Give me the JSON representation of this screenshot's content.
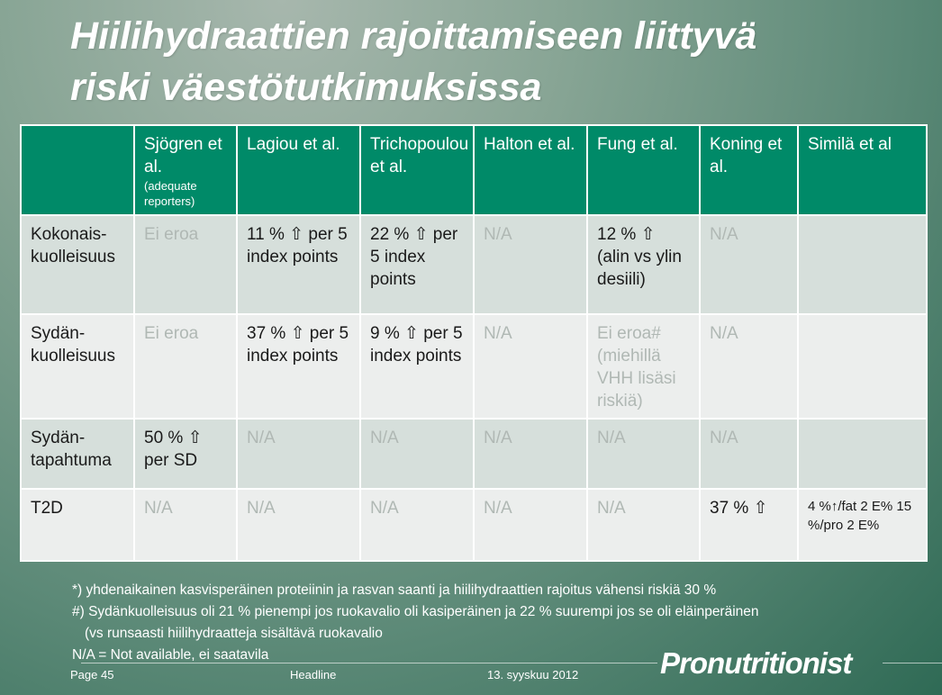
{
  "title": {
    "line1": "Hiilihydraattien rajoittamiseen liittyvä",
    "line2": "riski väestötutkimuksissa"
  },
  "table": {
    "headers": [
      {
        "main": "",
        "sub": ""
      },
      {
        "main": "Sjögren et al.",
        "sub": "(adequate reporters)"
      },
      {
        "main": "Lagiou et al.",
        "sub": ""
      },
      {
        "main": "Trichopoulou et al.",
        "sub": ""
      },
      {
        "main": "Halton et al.",
        "sub": ""
      },
      {
        "main": "Fung et al.",
        "sub": ""
      },
      {
        "main": "Koning et al.",
        "sub": ""
      },
      {
        "main": "Similä et al",
        "sub": ""
      }
    ],
    "rows": [
      {
        "label": "Kokonais-kuolleisuus",
        "cells": [
          "Ei eroa",
          "11 % ⇧ per 5 index points",
          "22 % ⇧ per 5 index points",
          "N/A",
          "12 % ⇧ (alin vs ylin desiili)",
          "N/A",
          ""
        ]
      },
      {
        "label": "Sydän-kuolleisuus",
        "cells": [
          "Ei eroa",
          "37 % ⇧ per 5 index points",
          "9 % ⇧ per 5 index points",
          "N/A",
          "Ei eroa# (miehillä VHH lisäsi riskiä)",
          "N/A",
          ""
        ]
      },
      {
        "label": "Sydän-tapahtuma",
        "cells": [
          "50 % ⇧ per SD",
          "N/A",
          "N/A",
          "N/A",
          "N/A",
          "N/A",
          ""
        ]
      },
      {
        "label": "T2D",
        "cells": [
          "N/A",
          "N/A",
          "N/A",
          "N/A",
          "N/A",
          "37 % ⇧",
          "4 %↑/fat 2 E% 15 %/pro 2 E%"
        ]
      }
    ]
  },
  "footnotes": [
    "*)  yhdenaikainen kasvisperäinen proteiinin ja rasvan saanti ja hiilihydraattien rajoitus vähensi riskiä 30 %",
    "#) Sydänkuolleisuus oli 21 % pienempi jos ruokavalio oli kasiperäinen ja 22 % suurempi jos se oli eläinperäinen",
    "(vs runsaasti hiilihydraatteja sisältävä ruokavalio",
    "N/A = Not available, ei saatavila"
  ],
  "footer": {
    "page": "Page 45",
    "headline": "Headline",
    "date": "13. syyskuu 2012"
  },
  "logo": {
    "text": "Pronutritionist"
  },
  "colors": {
    "header_green": "#008a68",
    "row_dark": "#d6dfdb",
    "row_light": "#eceeed",
    "na_text": "#b0b8b4"
  }
}
